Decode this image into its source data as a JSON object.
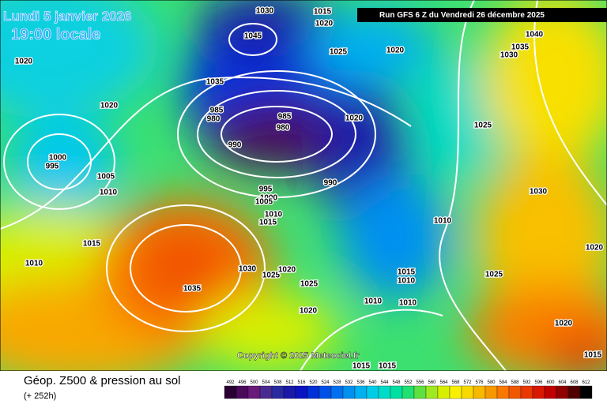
{
  "header": {
    "date": "Lundi 5 janvier 2026",
    "time": "19:00 locale",
    "run": "Run GFS 6 Z du Vendredi 26 décembre 2025",
    "copyright": "Copyright © 2025 Meteociel.fr"
  },
  "footer": {
    "title": "Géop. Z500 & pression au sol",
    "lead": "(+ 252h)"
  },
  "scale": {
    "labels": [
      492,
      496,
      500,
      504,
      508,
      512,
      516,
      520,
      524,
      528,
      532,
      536,
      540,
      544,
      548,
      552,
      556,
      560,
      564,
      568,
      572,
      576,
      580,
      584,
      588,
      592,
      596,
      600,
      604,
      608,
      612
    ],
    "colors": [
      "#2b0032",
      "#4a0a5a",
      "#6a1a7a",
      "#4a2a90",
      "#2a2aa0",
      "#1a1aa8",
      "#0a14c0",
      "#0030d8",
      "#0050e8",
      "#0070f0",
      "#0090f0",
      "#00b0f0",
      "#00cce8",
      "#00dcc8",
      "#00e0a0",
      "#20e070",
      "#60e040",
      "#a0e820",
      "#d8f000",
      "#f8f000",
      "#f8d800",
      "#f8b800",
      "#f89800",
      "#f87800",
      "#f05800",
      "#e83800",
      "#d81800",
      "#c00000",
      "#900000",
      "#500000",
      "#000000"
    ]
  },
  "isobar_labels": [
    "1030",
    "1015",
    "1020",
    "1045",
    "1025",
    "1020",
    "1040",
    "1035",
    "1030",
    "1020",
    "1020",
    "1035",
    "985",
    "980",
    "985",
    "980",
    "1020",
    "990",
    "1025",
    "1000",
    "995",
    "1005",
    "1010",
    "990",
    "995",
    "1000",
    "1005",
    "1010",
    "1015",
    "1010",
    "1030",
    "1015",
    "1010",
    "1030",
    "1025",
    "1020",
    "1035",
    "1025",
    "1015",
    "1010",
    "1025",
    "1020",
    "1010",
    "1010",
    "1020",
    "1020",
    "1015",
    "1015",
    "1015"
  ]
}
